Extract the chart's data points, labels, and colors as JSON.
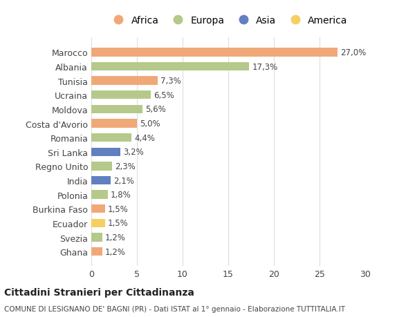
{
  "countries": [
    "Marocco",
    "Albania",
    "Tunisia",
    "Ucraina",
    "Moldova",
    "Costa d'Avorio",
    "Romania",
    "Sri Lanka",
    "Regno Unito",
    "India",
    "Polonia",
    "Burkina Faso",
    "Ecuador",
    "Svezia",
    "Ghana"
  ],
  "values": [
    27.0,
    17.3,
    7.3,
    6.5,
    5.6,
    5.0,
    4.4,
    3.2,
    2.3,
    2.1,
    1.8,
    1.5,
    1.5,
    1.2,
    1.2
  ],
  "labels": [
    "27,0%",
    "17,3%",
    "7,3%",
    "6,5%",
    "5,6%",
    "5,0%",
    "4,4%",
    "3,2%",
    "2,3%",
    "2,1%",
    "1,8%",
    "1,5%",
    "1,5%",
    "1,2%",
    "1,2%"
  ],
  "continents": [
    "Africa",
    "Europa",
    "Africa",
    "Europa",
    "Europa",
    "Africa",
    "Europa",
    "Asia",
    "Europa",
    "Asia",
    "Europa",
    "Africa",
    "America",
    "Europa",
    "Africa"
  ],
  "continent_colors": {
    "Africa": "#F0A878",
    "Europa": "#B5C98A",
    "Asia": "#6080C0",
    "America": "#F5D060"
  },
  "legend_order": [
    "Africa",
    "Europa",
    "Asia",
    "America"
  ],
  "title": "Cittadini Stranieri per Cittadinanza",
  "subtitle": "COMUNE DI LESIGNANO DE' BAGNI (PR) - Dati ISTAT al 1° gennaio - Elaborazione TUTTITALIA.IT",
  "xlim": [
    0,
    30
  ],
  "xticks": [
    0,
    5,
    10,
    15,
    20,
    25,
    30
  ],
  "background_color": "#ffffff",
  "grid_color": "#dddddd",
  "bar_height": 0.6
}
